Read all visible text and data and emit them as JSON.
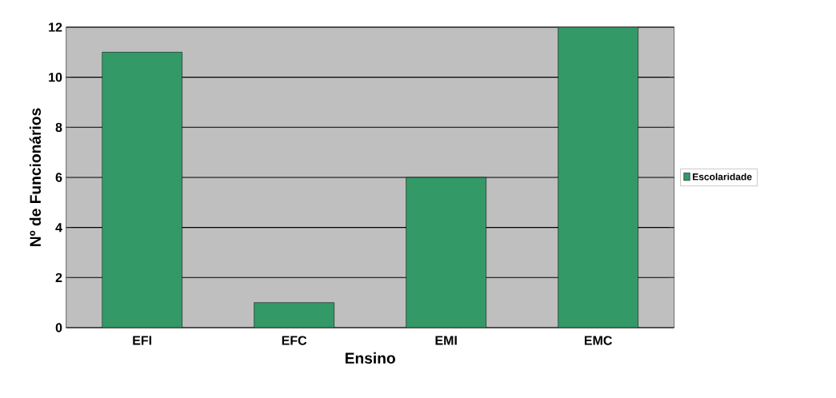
{
  "chart_data": {
    "type": "bar",
    "xlabel": "Ensino",
    "ylabel": "Nº de Funcionários",
    "categories": [
      "EFI",
      "EFC",
      "EMI",
      "EMC"
    ],
    "series": [
      {
        "name": "Escolaridade",
        "color": "#339966",
        "values": [
          11,
          1,
          6,
          12
        ]
      }
    ],
    "ylim": [
      0,
      12
    ],
    "yticks": [
      0,
      2,
      4,
      6,
      8,
      10,
      12
    ],
    "grid": "y",
    "legend": "right"
  }
}
